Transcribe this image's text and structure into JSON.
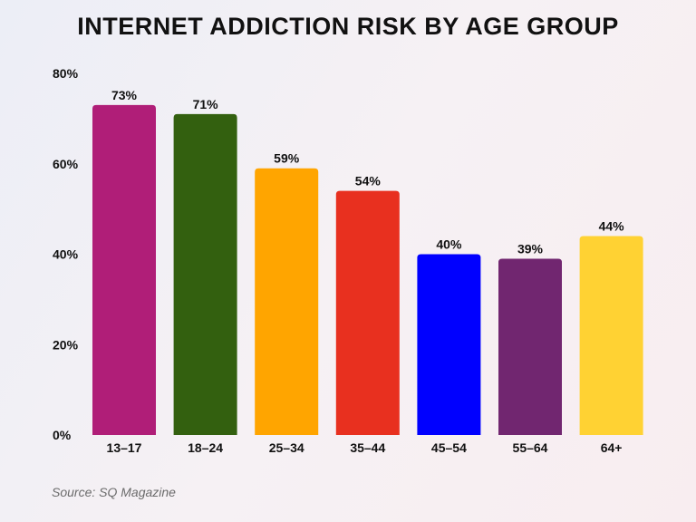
{
  "chart_data": {
    "type": "bar",
    "title": "INTERNET ADDICTION RISK BY AGE GROUP",
    "categories": [
      "13–17",
      "18–24",
      "25–34",
      "35–44",
      "45–54",
      "55–64",
      "64+"
    ],
    "values": [
      73,
      71,
      59,
      54,
      40,
      39,
      44
    ],
    "data_labels": [
      "73%",
      "71%",
      "59%",
      "54%",
      "40%",
      "39%",
      "44%"
    ],
    "colors": [
      "#b01e78",
      "#33600f",
      "#ffa500",
      "#e8301f",
      "#0000ff",
      "#712670",
      "#ffd233"
    ],
    "ylim": [
      0,
      80
    ],
    "yticks": [
      0,
      20,
      40,
      60,
      80
    ],
    "ytick_labels": [
      "0%",
      "20%",
      "40%",
      "60%",
      "80%"
    ],
    "xlabel": "",
    "ylabel": "",
    "grid": false,
    "legend": "none"
  },
  "source": "Source: SQ Magazine"
}
